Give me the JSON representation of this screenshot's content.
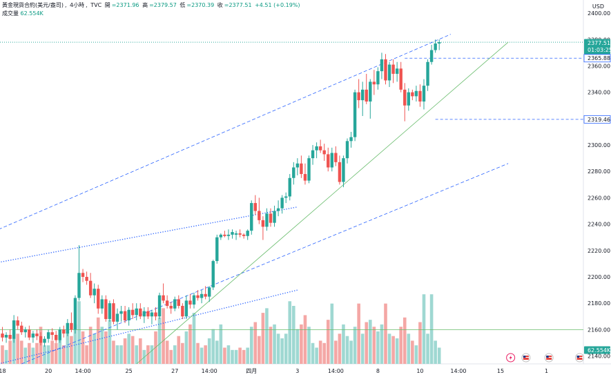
{
  "legend": {
    "symbol": "黃金現貨合約(美元/盎司)",
    "interval": "4小時",
    "source": "TVC",
    "open_label": "開",
    "open": "=2371.96",
    "high_label": "高",
    "high": "=2379.57",
    "low_label": "低",
    "low": "=2370.39",
    "close_label": "收",
    "close": "=2377.51",
    "change": "+4.51 (+0.19%)",
    "volume_label": "成交量",
    "volume": "62.554K"
  },
  "currency": "USD",
  "price_tags": {
    "current": "2377.51",
    "countdown": "01:03:25",
    "level1": "2365.88",
    "level2": "2319.46",
    "volume": "62.554K"
  },
  "colors": {
    "up": "#26a69a",
    "down": "#ef5350",
    "vol_up": "#9fd8d2",
    "vol_down": "#f4a7a5",
    "trend": "#2962ff",
    "support": "#66bb6a"
  },
  "chart_data": {
    "type": "candlestick",
    "title": "黃金現貨合約(美元/盎司), 4小時, TVC",
    "ylim": [
      2134,
      2410
    ],
    "y_ticks": [
      2140,
      2160,
      2180,
      2200,
      2220,
      2240,
      2260,
      2280,
      2300,
      2320,
      2340,
      2360,
      2380,
      2400
    ],
    "x_tick_labels": [
      {
        "i": 0,
        "label": "18"
      },
      {
        "i": 12,
        "label": "20"
      },
      {
        "i": 21,
        "label": "14:00"
      },
      {
        "i": 33,
        "label": "25"
      },
      {
        "i": 45,
        "label": "27"
      },
      {
        "i": 54,
        "label": "14:00"
      },
      {
        "i": 65,
        "label": "四月"
      },
      {
        "i": 77,
        "label": "3"
      },
      {
        "i": 87,
        "label": "14:00"
      },
      {
        "i": 98,
        "label": "8"
      },
      {
        "i": 109,
        "label": "10"
      },
      {
        "i": 119,
        "label": "14:00"
      },
      {
        "i": 130,
        "label": "15"
      },
      {
        "i": 142,
        "label": "1"
      }
    ],
    "ohlcv": [
      [
        2157,
        2162,
        2151,
        2154,
        8
      ],
      [
        2154,
        2158,
        2150,
        2156,
        6
      ],
      [
        2156,
        2160,
        2152,
        2153,
        10
      ],
      [
        2153,
        2171,
        2150,
        2167,
        14
      ],
      [
        2167,
        2170,
        2160,
        2163,
        13
      ],
      [
        2163,
        2166,
        2156,
        2158,
        10
      ],
      [
        2158,
        2162,
        2154,
        2160,
        7
      ],
      [
        2160,
        2163,
        2152,
        2154,
        9
      ],
      [
        2154,
        2159,
        2150,
        2157,
        7
      ],
      [
        2157,
        2160,
        2152,
        2155,
        9
      ],
      [
        2155,
        2158,
        2148,
        2150,
        16
      ],
      [
        2150,
        2155,
        2147,
        2153,
        8
      ],
      [
        2153,
        2160,
        2150,
        2158,
        8
      ],
      [
        2158,
        2161,
        2152,
        2156,
        10
      ],
      [
        2156,
        2159,
        2150,
        2152,
        9
      ],
      [
        2152,
        2162,
        2150,
        2160,
        13
      ],
      [
        2160,
        2163,
        2154,
        2157,
        8
      ],
      [
        2157,
        2168,
        2155,
        2165,
        14
      ],
      [
        2165,
        2173,
        2158,
        2160,
        12
      ],
      [
        2160,
        2186,
        2157,
        2184,
        17
      ],
      [
        2184,
        2224,
        2182,
        2203,
        27
      ],
      [
        2203,
        2206,
        2196,
        2200,
        14
      ],
      [
        2200,
        2204,
        2194,
        2197,
        8
      ],
      [
        2197,
        2203,
        2184,
        2186,
        16
      ],
      [
        2186,
        2195,
        2180,
        2191,
        13
      ],
      [
        2191,
        2194,
        2172,
        2176,
        20
      ],
      [
        2176,
        2186,
        2172,
        2183,
        16
      ],
      [
        2183,
        2186,
        2166,
        2168,
        14
      ],
      [
        2168,
        2182,
        2166,
        2180,
        19
      ],
      [
        2180,
        2183,
        2164,
        2166,
        10
      ],
      [
        2166,
        2176,
        2160,
        2172,
        8
      ],
      [
        2172,
        2178,
        2166,
        2174,
        8
      ],
      [
        2174,
        2178,
        2165,
        2167,
        11
      ],
      [
        2167,
        2177,
        2163,
        2175,
        13
      ],
      [
        2175,
        2180,
        2168,
        2171,
        12
      ],
      [
        2171,
        2180,
        2167,
        2176,
        8
      ],
      [
        2176,
        2180,
        2168,
        2170,
        11
      ],
      [
        2170,
        2177,
        2165,
        2174,
        6
      ],
      [
        2174,
        2177,
        2168,
        2170,
        8
      ],
      [
        2170,
        2175,
        2164,
        2173,
        8
      ],
      [
        2173,
        2177,
        2167,
        2170,
        14
      ],
      [
        2170,
        2188,
        2168,
        2186,
        20
      ],
      [
        2186,
        2195,
        2180,
        2182,
        24
      ],
      [
        2182,
        2186,
        2176,
        2178,
        10
      ],
      [
        2178,
        2181,
        2172,
        2176,
        6
      ],
      [
        2176,
        2185,
        2174,
        2183,
        8
      ],
      [
        2183,
        2186,
        2176,
        2178,
        12
      ],
      [
        2178,
        2180,
        2168,
        2170,
        9
      ],
      [
        2170,
        2186,
        2168,
        2182,
        14
      ],
      [
        2182,
        2187,
        2176,
        2179,
        17
      ],
      [
        2179,
        2188,
        2176,
        2186,
        22
      ],
      [
        2186,
        2190,
        2182,
        2184,
        9
      ],
      [
        2184,
        2190,
        2180,
        2187,
        7
      ],
      [
        2187,
        2193,
        2183,
        2185,
        8
      ],
      [
        2185,
        2193,
        2181,
        2192,
        11
      ],
      [
        2192,
        2213,
        2190,
        2212,
        15
      ],
      [
        2212,
        2232,
        2210,
        2230,
        10
      ],
      [
        2230,
        2233,
        2228,
        2232,
        17
      ],
      [
        2232,
        2235,
        2230,
        2231,
        7
      ],
      [
        2231,
        2236,
        2228,
        2232,
        8
      ],
      [
        2232,
        2236,
        2229,
        2234,
        6
      ],
      [
        2232,
        2235,
        2228,
        2233,
        6
      ],
      [
        2233,
        2236,
        2230,
        2232,
        7
      ],
      [
        2232,
        2233,
        2229,
        2231,
        6
      ],
      [
        2231,
        2236,
        2228,
        2235,
        7
      ],
      [
        2235,
        2258,
        2232,
        2256,
        16
      ],
      [
        2256,
        2262,
        2247,
        2250,
        18
      ],
      [
        2250,
        2260,
        2240,
        2243,
        12
      ],
      [
        2243,
        2246,
        2228,
        2238,
        22
      ],
      [
        2238,
        2252,
        2235,
        2248,
        24
      ],
      [
        2248,
        2252,
        2238,
        2241,
        16
      ],
      [
        2241,
        2254,
        2238,
        2250,
        17
      ],
      [
        2250,
        2258,
        2246,
        2252,
        13
      ],
      [
        2252,
        2262,
        2248,
        2260,
        11
      ],
      [
        2260,
        2264,
        2256,
        2261,
        13
      ],
      [
        2261,
        2278,
        2258,
        2275,
        27
      ],
      [
        2275,
        2287,
        2270,
        2283,
        25
      ],
      [
        2283,
        2290,
        2277,
        2286,
        15
      ],
      [
        2286,
        2292,
        2275,
        2278,
        17
      ],
      [
        2278,
        2286,
        2270,
        2273,
        21
      ],
      [
        2273,
        2292,
        2271,
        2290,
        16
      ],
      [
        2290,
        2300,
        2285,
        2296,
        9
      ],
      [
        2296,
        2302,
        2290,
        2299,
        7
      ],
      [
        2299,
        2304,
        2294,
        2296,
        10
      ],
      [
        2296,
        2301,
        2288,
        2293,
        9
      ],
      [
        2293,
        2298,
        2280,
        2283,
        19
      ],
      [
        2283,
        2298,
        2280,
        2294,
        26
      ],
      [
        2294,
        2299,
        2284,
        2287,
        10
      ],
      [
        2287,
        2292,
        2270,
        2272,
        13
      ],
      [
        2272,
        2292,
        2268,
        2290,
        17
      ],
      [
        2290,
        2305,
        2286,
        2303,
        12
      ],
      [
        2303,
        2310,
        2298,
        2306,
        10
      ],
      [
        2306,
        2342,
        2303,
        2340,
        16
      ],
      [
        2340,
        2350,
        2328,
        2334,
        26
      ],
      [
        2334,
        2348,
        2322,
        2342,
        13
      ],
      [
        2342,
        2354,
        2331,
        2333,
        18
      ],
      [
        2333,
        2350,
        2320,
        2348,
        19
      ],
      [
        2348,
        2357,
        2338,
        2346,
        16
      ],
      [
        2346,
        2359,
        2342,
        2356,
        14
      ],
      [
        2356,
        2370,
        2350,
        2365,
        17
      ],
      [
        2365,
        2369,
        2346,
        2349,
        26
      ],
      [
        2349,
        2363,
        2344,
        2361,
        13
      ],
      [
        2361,
        2365,
        2347,
        2354,
        12
      ],
      [
        2354,
        2363,
        2348,
        2358,
        11
      ],
      [
        2358,
        2363,
        2340,
        2342,
        16
      ],
      [
        2342,
        2347,
        2318,
        2330,
        20
      ],
      [
        2330,
        2343,
        2326,
        2340,
        13
      ],
      [
        2340,
        2342,
        2334,
        2337,
        10
      ],
      [
        2337,
        2345,
        2333,
        2341,
        8
      ],
      [
        2341,
        2346,
        2329,
        2333,
        18
      ],
      [
        2333,
        2350,
        2327,
        2345,
        30
      ],
      [
        2345,
        2365,
        2341,
        2363,
        13
      ],
      [
        2363,
        2376,
        2361,
        2372,
        30
      ],
      [
        2372,
        2380,
        2370,
        2377,
        10
      ],
      [
        2377,
        2380,
        2372,
        2378,
        7
      ]
    ],
    "horizontal_lines": [
      2365.88,
      2319.46,
      2160
    ],
    "trend_lines": [
      {
        "style": "dashed",
        "from": [
          -1,
          2236
        ],
        "to": [
          117,
          2384
        ]
      },
      {
        "style": "dashed",
        "from": [
          5,
          2134
        ],
        "to": [
          132,
          2286
        ]
      },
      {
        "style": "dotted",
        "from": [
          -1,
          2211
        ],
        "to": [
          77,
          2253
        ]
      },
      {
        "style": "dotted",
        "from": [
          -1,
          2134
        ],
        "to": [
          77,
          2190
        ]
      },
      {
        "style": "solid",
        "from": [
          35,
          2134
        ],
        "to": [
          132,
          2378
        ]
      }
    ],
    "volume_scale_max": 100
  }
}
